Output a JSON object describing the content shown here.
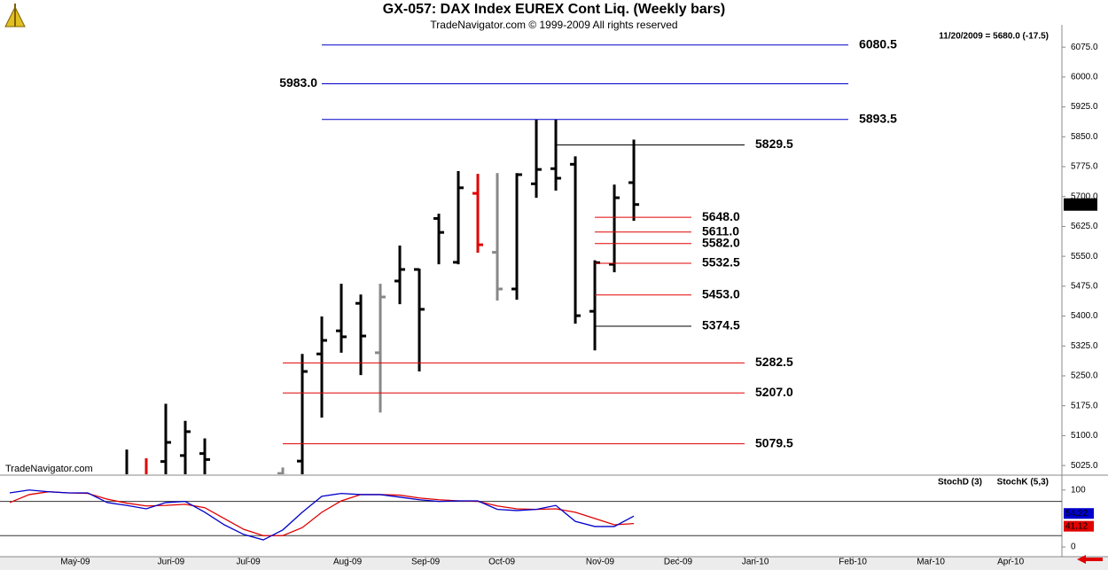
{
  "header": {
    "title": "GX-057:  DAX Index EUREX Cont Liq.  (Weekly bars)",
    "subtitle": "TradeNavigator.com © 1999-2009 All rights reserved",
    "info": "11/20/2009 = 5680.0 (-17.5)",
    "watermark": "TradeNavigator.com"
  },
  "chart_data": [
    {
      "type": "ohlc",
      "x": [
        0,
        1,
        2,
        3,
        4,
        8,
        9,
        10,
        11,
        12,
        13,
        14,
        15,
        16,
        17,
        18,
        19,
        20,
        21,
        22,
        23,
        24,
        25,
        26
      ],
      "open": [
        4990,
        4990,
        5035,
        5050,
        5055,
        5005,
        5036,
        5305,
        5363,
        5432,
        5308,
        5488,
        5517,
        5645,
        5535,
        5708,
        5560,
        5468,
        5732,
        5770,
        5781,
        5412,
        5530,
        5735
      ],
      "high": [
        5065,
        5043,
        5180,
        5137,
        5093,
        5020,
        5305,
        5399,
        5481,
        5454,
        5481,
        5577,
        5519,
        5657,
        5764,
        5757,
        5759,
        5759,
        5893,
        5893,
        5801,
        5540,
        5730,
        5843
      ],
      "low": [
        4980,
        4970,
        4990,
        4990,
        4990,
        4990,
        4990,
        5145,
        5308,
        5252,
        5158,
        5430,
        5261,
        5530,
        5530,
        5559,
        5439,
        5441,
        5697,
        5715,
        5381,
        5314,
        5510,
        5639
      ],
      "close": [
        4995,
        4980,
        5083,
        5110,
        5040,
        5000,
        5261,
        5339,
        5348,
        5350,
        5448,
        5517,
        5417,
        5610,
        5722,
        5579,
        5468,
        5755,
        5768,
        5746,
        5401,
        5534,
        5697,
        5680
      ],
      "colors": [
        "#000000",
        "#e00000",
        "#000000",
        "#000000",
        "#000000",
        "#888888",
        "#000000",
        "#000000",
        "#000000",
        "#000000",
        "#888888",
        "#000000",
        "#000000",
        "#000000",
        "#000000",
        "#e00000",
        "#888888",
        "#000000",
        "#000000",
        "#000000",
        "#000000",
        "#000000",
        "#000000",
        "#000000"
      ],
      "last_label": "5680.0",
      "xlim": [
        -6.5,
        47.95
      ],
      "xticks": [
        {
          "value": -2.64,
          "label": "May-09"
        },
        {
          "value": 2.27,
          "label": "Jun-09"
        },
        {
          "value": 6.23,
          "label": "Jul-09"
        },
        {
          "value": 11.32,
          "label": "Aug-09"
        },
        {
          "value": 15.32,
          "label": "Sep-09"
        },
        {
          "value": 19.23,
          "label": "Oct-09"
        },
        {
          "value": 24.27,
          "label": "Nov-09"
        },
        {
          "value": 28.27,
          "label": "Dec-09"
        },
        {
          "value": 32.23,
          "label": "Jan-10"
        },
        {
          "value": 37.23,
          "label": "Feb-10"
        },
        {
          "value": 41.23,
          "label": "Mar-10"
        },
        {
          "value": 45.32,
          "label": "Apr-10"
        }
      ],
      "ylim": [
        5003,
        6131
      ],
      "yticks": [
        {
          "value": 5025,
          "label": "5025.0"
        },
        {
          "value": 5100,
          "label": "5100.0"
        },
        {
          "value": 5175,
          "label": "5175.0"
        },
        {
          "value": 5250,
          "label": "5250.0"
        },
        {
          "value": 5325,
          "label": "5325.0"
        },
        {
          "value": 5400,
          "label": "5400.0"
        },
        {
          "value": 5475,
          "label": "5475.0"
        },
        {
          "value": 5550,
          "label": "5550.0"
        },
        {
          "value": 5625,
          "label": "5625.0"
        },
        {
          "value": 5700,
          "label": "5700.0"
        },
        {
          "value": 5775,
          "label": "5775.0"
        },
        {
          "value": 5850,
          "label": "5850.0"
        },
        {
          "value": 5925,
          "label": "5925.0"
        },
        {
          "value": 6000,
          "label": "6000.0"
        },
        {
          "value": 6075,
          "label": "6075.0"
        }
      ],
      "levels": [
        {
          "value": 6080.5,
          "color": "#0000cc",
          "from": 10,
          "to": 37
        },
        {
          "value": 5983,
          "label": "5983.0",
          "color": "#0000cc",
          "from": 10,
          "to": 37,
          "label_side": "left"
        },
        {
          "value": 5893.5,
          "color": "#0000cc",
          "from": 10,
          "to": 37
        },
        {
          "value": 5829.5,
          "color": "#000000",
          "from": 22,
          "to": 31.68
        },
        {
          "value": 5648,
          "label": "5648.0",
          "color": "#e00000",
          "from": 24,
          "to": 28.95
        },
        {
          "value": 5611,
          "label": "5611.0",
          "color": "#e00000",
          "from": 24,
          "to": 28.95
        },
        {
          "value": 5582,
          "label": "5582.0",
          "color": "#e00000",
          "from": 24,
          "to": 28.95
        },
        {
          "value": 5532.5,
          "color": "#e00000",
          "from": 24,
          "to": 28.95
        },
        {
          "value": 5453,
          "label": "5453.0",
          "color": "#e00000",
          "from": 24,
          "to": 28.95
        },
        {
          "value": 5374.5,
          "color": "#000000",
          "from": 24,
          "to": 28.95
        },
        {
          "value": 5282.5,
          "color": "#e00000",
          "from": 8,
          "to": 31.68
        },
        {
          "value": 5207,
          "label": "5207.0",
          "color": "#e00000",
          "from": 8,
          "to": 31.68
        },
        {
          "value": 5079.5,
          "color": "#e00000",
          "from": 8,
          "to": 31.68
        }
      ]
    },
    {
      "type": "line",
      "x": [
        -6,
        -5,
        -4,
        -3,
        -2,
        -1,
        0,
        1,
        2,
        3,
        4,
        5,
        6,
        7,
        8,
        9,
        10,
        11,
        12,
        13,
        14,
        15,
        16,
        17,
        18,
        19,
        20,
        21,
        22,
        23,
        24,
        25,
        26
      ],
      "series": [
        {
          "name": "StochD (3)",
          "color": "#e00000",
          "values": [
            78,
            92,
            97,
            95,
            94,
            84,
            77,
            72,
            73,
            75,
            69,
            50,
            31,
            20,
            20,
            34,
            61,
            81,
            92,
            92,
            91,
            86,
            83,
            81,
            80,
            72,
            67,
            66,
            67,
            61,
            50,
            39,
            41.12
          ]
        },
        {
          "name": "StochK (5,3)",
          "color": "#0000cc",
          "values": [
            95,
            100,
            97,
            95,
            95,
            78,
            73,
            67,
            78,
            80,
            61,
            39,
            22,
            12.5,
            30,
            61,
            89,
            94,
            92,
            92,
            87.5,
            83,
            80,
            81,
            81,
            66,
            64,
            66,
            73,
            45,
            36,
            36,
            54.22
          ]
        }
      ],
      "xlim": [
        -6.5,
        47.95
      ],
      "ylim": [
        -17,
        123
      ],
      "yticks": [
        0,
        100
      ],
      "ref_lines": [
        20,
        80
      ]
    }
  ]
}
